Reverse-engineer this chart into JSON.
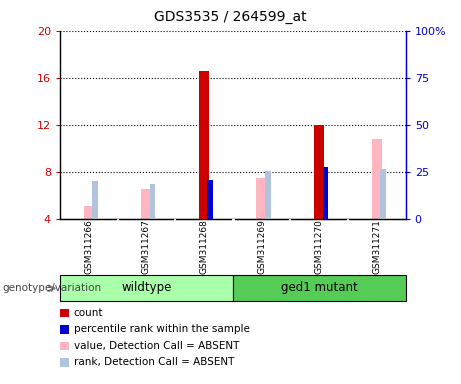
{
  "title": "GDS3535 / 264599_at",
  "samples": [
    "GSM311266",
    "GSM311267",
    "GSM311268",
    "GSM311269",
    "GSM311270",
    "GSM311271"
  ],
  "ylim_left": [
    4,
    20
  ],
  "ylim_right": [
    0,
    100
  ],
  "yticks_left": [
    4,
    8,
    12,
    16,
    20
  ],
  "yticks_right": [
    0,
    25,
    50,
    75,
    100
  ],
  "left_tick_labels": [
    "4",
    "8",
    "12",
    "16",
    "20"
  ],
  "right_tick_labels": [
    "0",
    "25",
    "50",
    "75",
    "100%"
  ],
  "count_bars": {
    "GSM311268": 16.6,
    "GSM311270": 12.0
  },
  "rank_bars": {
    "GSM311268": 7.1,
    "GSM311270": 8.25
  },
  "absent_value_bars": {
    "GSM311266": 5.1,
    "GSM311267": 6.5,
    "GSM311269": 7.5,
    "GSM311271": 10.8
  },
  "absent_rank_bars": {
    "GSM311266": 7.0,
    "GSM311267": 6.75,
    "GSM311269": 7.85,
    "GSM311271": 8.1
  },
  "count_color": "#cc0000",
  "rank_color": "#0000cc",
  "absent_value_color": "#ffb6c1",
  "absent_rank_color": "#b0c4de",
  "bg_color": "#ffffff",
  "plot_bg": "#ffffff",
  "left_axis_color": "#cc0000",
  "right_axis_color": "#0000cc",
  "sample_bg": "#cccccc",
  "wildtype_color": "#aaffaa",
  "mutant_color": "#55cc55",
  "genotype_label": "genotype/variation",
  "legend_items": [
    {
      "label": "count",
      "color": "#cc0000"
    },
    {
      "label": "percentile rank within the sample",
      "color": "#0000cc"
    },
    {
      "label": "value, Detection Call = ABSENT",
      "color": "#ffb6c1"
    },
    {
      "label": "rank, Detection Call = ABSENT",
      "color": "#b0c4de"
    }
  ]
}
